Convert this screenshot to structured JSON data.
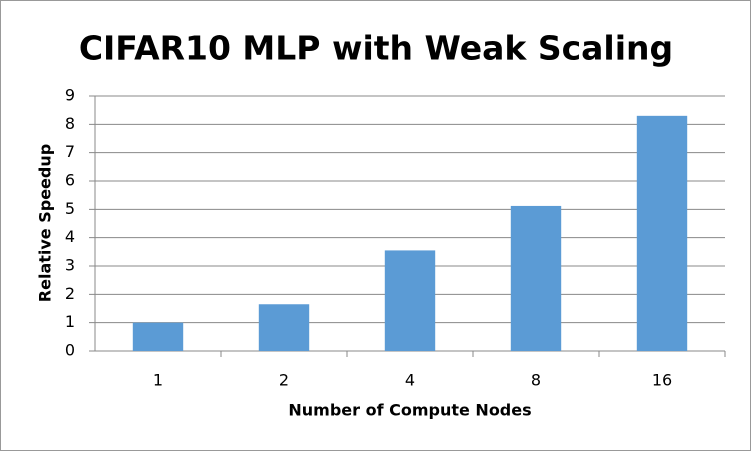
{
  "chart_data": {
    "type": "bar",
    "title": "CIFAR10 MLP with Weak Scaling",
    "x_label": "Number of Compute Nodes",
    "y_label": "Relative Speedup",
    "categories": [
      "1",
      "2",
      "4",
      "8",
      "16"
    ],
    "values": [
      1.0,
      1.65,
      3.55,
      5.12,
      8.3
    ],
    "color": "#5b9bd5",
    "ylim": [
      0,
      9
    ],
    "yticks": [
      0,
      1,
      2,
      3,
      4,
      5,
      6,
      7,
      8,
      9
    ],
    "grid": true
  }
}
